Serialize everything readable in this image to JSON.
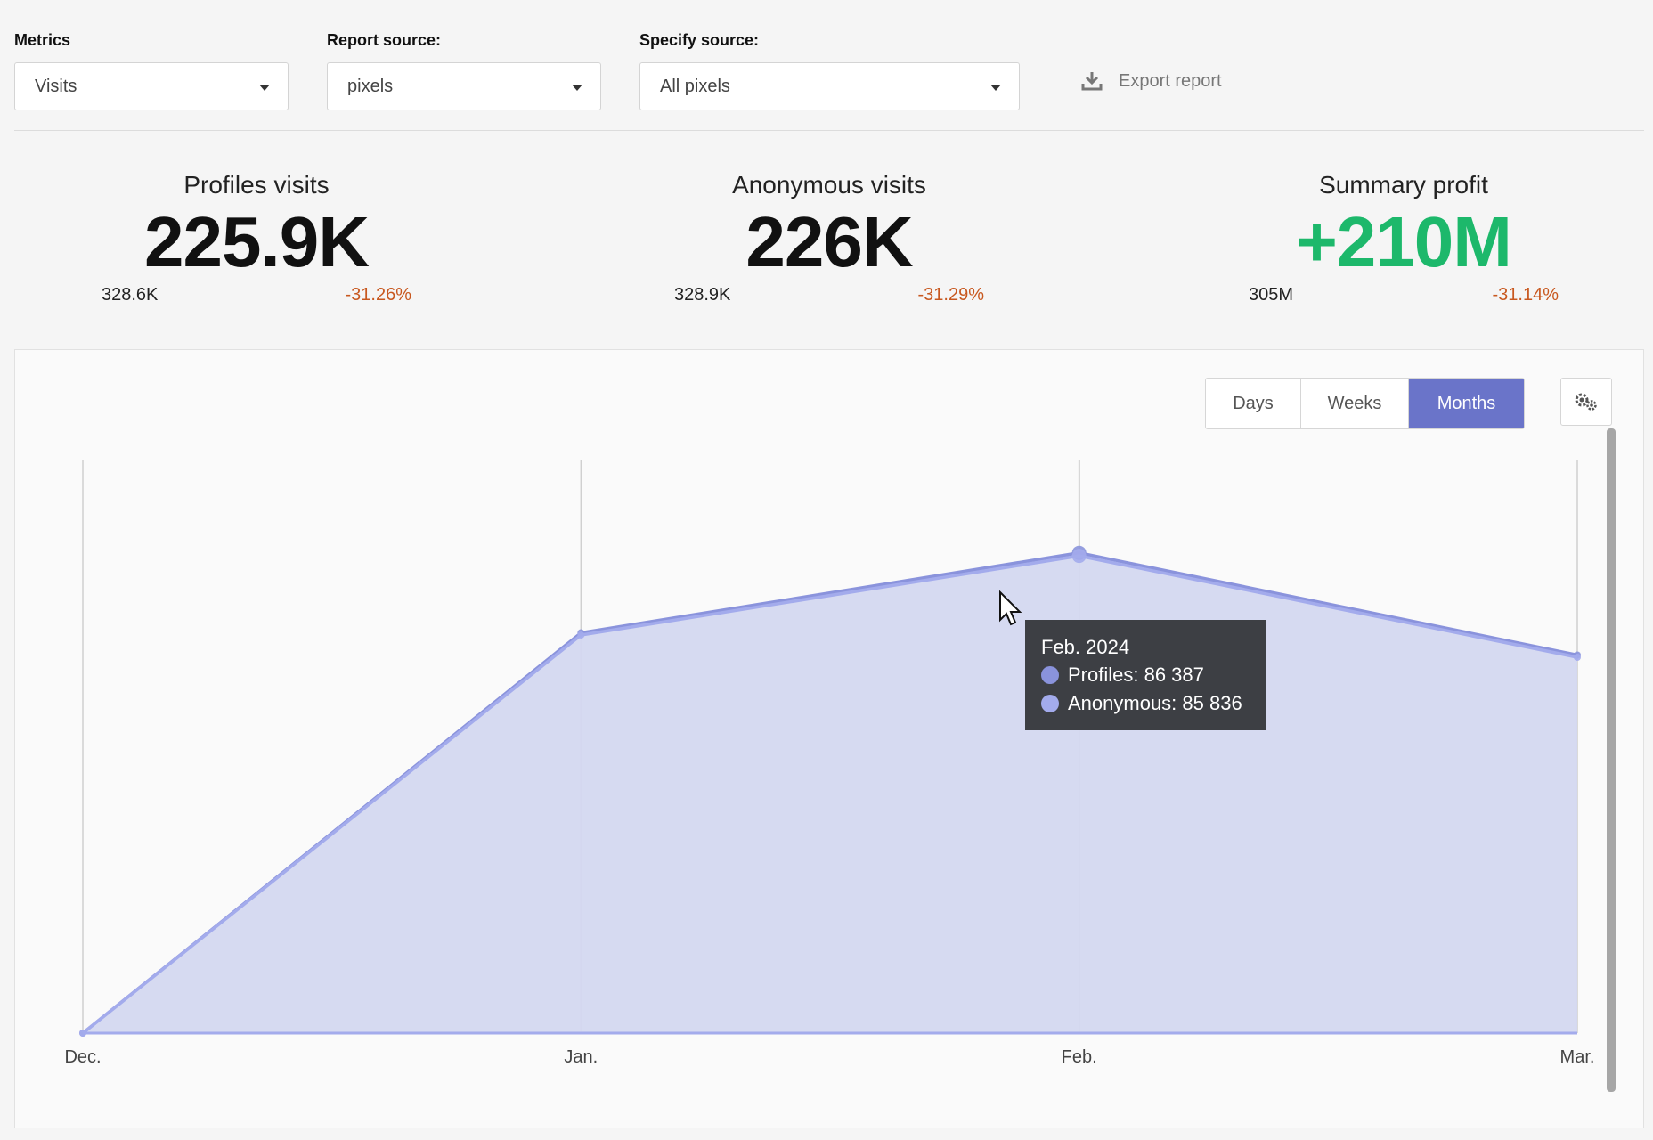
{
  "filters": {
    "metrics": {
      "label": "Metrics",
      "value": "Visits"
    },
    "report_source": {
      "label": "Report source:",
      "value": "pixels"
    },
    "specify_source": {
      "label": "Specify source:",
      "value": "All pixels"
    },
    "export_label": "Export report"
  },
  "kpis": [
    {
      "title": "Profiles visits",
      "value": "225.9K",
      "previous": "328.6K",
      "change": "-31.26%"
    },
    {
      "title": "Anonymous visits",
      "value": "226K",
      "previous": "328.9K",
      "change": "-31.29%"
    },
    {
      "title": "Summary profit",
      "value": "+210M",
      "previous": "305M",
      "change": "-31.14%"
    }
  ],
  "period": {
    "options": [
      "Days",
      "Weeks",
      "Months"
    ],
    "active": "Months"
  },
  "colors": {
    "accent": "#6a74c9",
    "area_fill": "#d4d8f1",
    "line_profiles": "#8a93dc",
    "line_anonymous": "#a3abec",
    "positive": "#1db86b",
    "negative": "#c8581f"
  },
  "chart_data": {
    "type": "area",
    "x": [
      "Dec.",
      "Jan.",
      "Feb.",
      "Mar."
    ],
    "series": [
      {
        "name": "Profiles",
        "values": [
          0,
          72000,
          86387,
          68000
        ]
      },
      {
        "name": "Anonymous",
        "values": [
          0,
          71600,
          85836,
          67600
        ]
      }
    ],
    "ylim": [
      0,
      103000
    ],
    "grid": "vertical"
  },
  "tooltip": {
    "title": "Feb. 2024",
    "rows": [
      {
        "label": "Profiles: 86 387"
      },
      {
        "label": "Anonymous: 85 836"
      }
    ]
  }
}
